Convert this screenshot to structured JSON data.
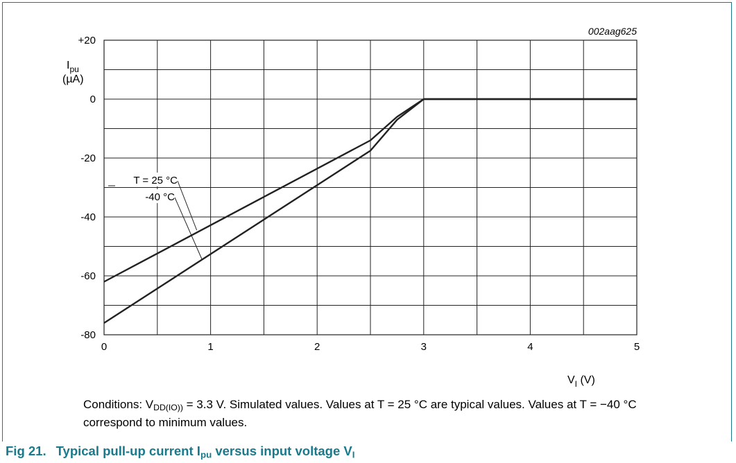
{
  "chart_data": {
    "type": "line",
    "figure_id": "002aag625",
    "xlabel": "V",
    "xlabel_sub": "I",
    "xlabel_unit": "(V)",
    "ylabel": "I",
    "ylabel_sub": "pu",
    "ylabel_unit": "(µA)",
    "xlim": [
      0,
      5
    ],
    "ylim": [
      -80,
      20
    ],
    "x_ticks": [
      0,
      1,
      2,
      3,
      4,
      5
    ],
    "x_tick_labels": [
      "0",
      "1",
      "2",
      "3",
      "4",
      "5"
    ],
    "y_ticks": [
      20,
      0,
      -20,
      -40,
      -60,
      -80
    ],
    "y_tick_labels": [
      "+20",
      "0",
      "-20",
      "-40",
      "-60",
      "-80"
    ],
    "x_grid_step": 0.5,
    "y_grid_step": 10,
    "grid": true,
    "line_color": "#222222",
    "series": [
      {
        "name": "T = 25 °C",
        "x": [
          0,
          2.5,
          2.75,
          3.0,
          5.0
        ],
        "y": [
          -62,
          -14,
          -6,
          0,
          0
        ]
      },
      {
        "name": "-40 °C",
        "x": [
          0,
          2.5,
          2.75,
          3.0,
          5.0
        ],
        "y": [
          -76,
          -17.5,
          -7,
          0,
          0
        ]
      }
    ],
    "annotations": [
      {
        "text": "T = 25 °C",
        "series": 0,
        "at": [
          0.87,
          -44.5
        ]
      },
      {
        "text": "-40 °C",
        "series": 1,
        "at": [
          0.92,
          -54.5
        ]
      }
    ]
  },
  "conditions": {
    "prefix": "Conditions: V",
    "sub": "DD(IO))",
    "rest": " = 3.3 V. Simulated values. Values at T = 25 °C are typical values. Values at T = −40 °C correspond to minimum values."
  },
  "caption": {
    "fig_label": "Fig 21.",
    "text_a": "Typical pull-up current I",
    "sub_a": "pu",
    "text_b": " versus input voltage V",
    "sub_b": "I"
  },
  "colors": {
    "accent": "#1a7a8c",
    "grid": "#222222",
    "text": "#000000"
  }
}
